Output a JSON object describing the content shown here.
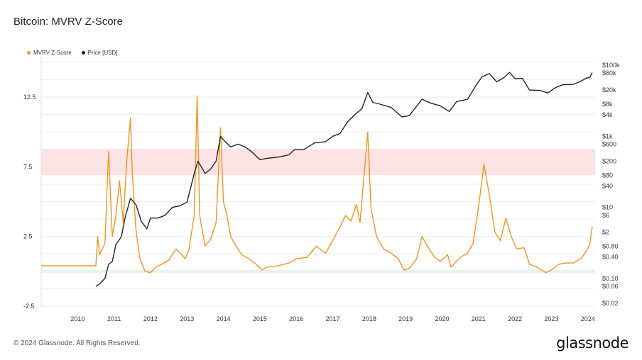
{
  "header": {
    "title": "Bitcoin: MVRV Z-Score"
  },
  "footer": {
    "copyright": "© 2024 Glassnode. All Rights Reserved.",
    "brand": "glassnode"
  },
  "colors": {
    "mvrv": "#f7931a",
    "price": "#222222",
    "red_band": "#fde3e3",
    "green_band": "#e3f5e8",
    "grid": "#eeeeee"
  },
  "chart_data": {
    "type": "line",
    "title": "Bitcoin: MVRV Z-Score",
    "legend": [
      {
        "name": "MVRV Z-Score",
        "color": "#f7931a"
      },
      {
        "name": "Price [USD]",
        "color": "#222222"
      }
    ],
    "legend_position": "top-left",
    "x_ticks": [
      "2010",
      "2011",
      "2012",
      "2013",
      "2014",
      "2015",
      "2016",
      "2017",
      "2018",
      "2019",
      "2020",
      "2021",
      "2022",
      "2023",
      "2024"
    ],
    "xlim": [
      2009.0,
      2024.2
    ],
    "left_axis": {
      "ticks": [
        "12.5",
        "7.5",
        "2.5",
        "-2.5"
      ],
      "tick_values": [
        12.5,
        7.5,
        2.5,
        -2.5
      ],
      "ylim": [
        -2.5,
        15.2
      ]
    },
    "right_axis": {
      "scale": "log",
      "ticks": [
        "$100k",
        "$60k",
        "$20k",
        "$8k",
        "$4k",
        "$1k",
        "$600",
        "$200",
        "$80",
        "$40",
        "$10",
        "$6",
        "$2",
        "$0.80",
        "$0.40",
        "$0.10",
        "$0.06",
        "$0.02"
      ],
      "tick_values": [
        100000,
        60000,
        20000,
        8000,
        4000,
        1000,
        600,
        200,
        80,
        40,
        10,
        6,
        2,
        0.8,
        0.4,
        0.1,
        0.06,
        0.02
      ]
    },
    "bands": [
      {
        "from": 6.9,
        "to": 8.8,
        "color": "#fde3e3"
      },
      {
        "from": -0.1,
        "to": 0.1,
        "color": "#e3f5e8"
      }
    ],
    "series": [
      {
        "name": "MVRV Z-Score",
        "axis": "left",
        "color": "#f7931a",
        "points": [
          [
            2009.0,
            0.4
          ],
          [
            2010.5,
            0.4
          ],
          [
            2010.55,
            2.5
          ],
          [
            2010.6,
            1.2
          ],
          [
            2010.75,
            2.0
          ],
          [
            2010.85,
            8.6
          ],
          [
            2010.95,
            2.5
          ],
          [
            2011.05,
            4.0
          ],
          [
            2011.15,
            6.5
          ],
          [
            2011.25,
            3.5
          ],
          [
            2011.35,
            8.0
          ],
          [
            2011.45,
            11.0
          ],
          [
            2011.5,
            7.0
          ],
          [
            2011.6,
            3.0
          ],
          [
            2011.7,
            1.0
          ],
          [
            2011.85,
            0.0
          ],
          [
            2012.0,
            -0.1
          ],
          [
            2012.15,
            0.3
          ],
          [
            2012.3,
            0.5
          ],
          [
            2012.5,
            0.8
          ],
          [
            2012.7,
            1.6
          ],
          [
            2012.85,
            1.2
          ],
          [
            2012.95,
            0.9
          ],
          [
            2013.05,
            1.5
          ],
          [
            2013.2,
            4.0
          ],
          [
            2013.28,
            12.6
          ],
          [
            2013.35,
            4.0
          ],
          [
            2013.5,
            1.8
          ],
          [
            2013.65,
            2.3
          ],
          [
            2013.8,
            3.5
          ],
          [
            2013.92,
            10.3
          ],
          [
            2014.0,
            5.0
          ],
          [
            2014.1,
            4.0
          ],
          [
            2014.2,
            2.5
          ],
          [
            2014.35,
            1.8
          ],
          [
            2014.5,
            1.2
          ],
          [
            2014.7,
            0.9
          ],
          [
            2014.9,
            0.5
          ],
          [
            2015.05,
            0.1
          ],
          [
            2015.2,
            0.3
          ],
          [
            2015.5,
            0.4
          ],
          [
            2015.8,
            0.6
          ],
          [
            2016.0,
            0.9
          ],
          [
            2016.3,
            1.0
          ],
          [
            2016.55,
            1.8
          ],
          [
            2016.8,
            1.3
          ],
          [
            2017.0,
            2.2
          ],
          [
            2017.2,
            3.2
          ],
          [
            2017.35,
            4.0
          ],
          [
            2017.5,
            3.6
          ],
          [
            2017.65,
            4.8
          ],
          [
            2017.75,
            3.5
          ],
          [
            2017.88,
            7.5
          ],
          [
            2017.96,
            10.0
          ],
          [
            2018.05,
            4.5
          ],
          [
            2018.2,
            2.5
          ],
          [
            2018.4,
            1.6
          ],
          [
            2018.6,
            1.3
          ],
          [
            2018.8,
            0.9
          ],
          [
            2018.95,
            0.1
          ],
          [
            2019.1,
            0.2
          ],
          [
            2019.3,
            0.9
          ],
          [
            2019.45,
            2.5
          ],
          [
            2019.6,
            1.8
          ],
          [
            2019.8,
            1.0
          ],
          [
            2019.95,
            0.7
          ],
          [
            2020.15,
            1.2
          ],
          [
            2020.25,
            0.3
          ],
          [
            2020.5,
            1.0
          ],
          [
            2020.7,
            1.3
          ],
          [
            2020.85,
            2.0
          ],
          [
            2021.0,
            4.6
          ],
          [
            2021.15,
            7.7
          ],
          [
            2021.3,
            5.4
          ],
          [
            2021.45,
            2.8
          ],
          [
            2021.6,
            2.2
          ],
          [
            2021.75,
            3.8
          ],
          [
            2021.9,
            2.5
          ],
          [
            2022.05,
            1.6
          ],
          [
            2022.25,
            1.7
          ],
          [
            2022.4,
            0.5
          ],
          [
            2022.6,
            0.3
          ],
          [
            2022.85,
            -0.1
          ],
          [
            2023.0,
            0.1
          ],
          [
            2023.2,
            0.5
          ],
          [
            2023.4,
            0.6
          ],
          [
            2023.6,
            0.6
          ],
          [
            2023.8,
            0.9
          ],
          [
            2023.95,
            1.4
          ],
          [
            2024.05,
            1.9
          ],
          [
            2024.12,
            3.2
          ]
        ]
      },
      {
        "name": "Price [USD]",
        "axis": "right",
        "color": "#222222",
        "points": [
          [
            2010.5,
            0.06
          ],
          [
            2010.6,
            0.07
          ],
          [
            2010.75,
            0.1
          ],
          [
            2010.85,
            0.25
          ],
          [
            2010.95,
            0.3
          ],
          [
            2011.05,
            0.9
          ],
          [
            2011.2,
            1.5
          ],
          [
            2011.3,
            5
          ],
          [
            2011.45,
            18
          ],
          [
            2011.6,
            12
          ],
          [
            2011.75,
            4
          ],
          [
            2011.9,
            2.5
          ],
          [
            2012.0,
            5
          ],
          [
            2012.2,
            5
          ],
          [
            2012.4,
            6
          ],
          [
            2012.6,
            10
          ],
          [
            2012.8,
            11
          ],
          [
            2013.0,
            14
          ],
          [
            2013.2,
            90
          ],
          [
            2013.3,
            200
          ],
          [
            2013.5,
            90
          ],
          [
            2013.65,
            120
          ],
          [
            2013.8,
            200
          ],
          [
            2013.92,
            1000
          ],
          [
            2014.0,
            800
          ],
          [
            2014.2,
            500
          ],
          [
            2014.4,
            600
          ],
          [
            2014.6,
            500
          ],
          [
            2014.8,
            350
          ],
          [
            2015.0,
            220
          ],
          [
            2015.2,
            240
          ],
          [
            2015.5,
            260
          ],
          [
            2015.8,
            300
          ],
          [
            2015.95,
            420
          ],
          [
            2016.2,
            420
          ],
          [
            2016.5,
            650
          ],
          [
            2016.8,
            700
          ],
          [
            2017.0,
            1000
          ],
          [
            2017.2,
            1200
          ],
          [
            2017.4,
            2500
          ],
          [
            2017.6,
            4000
          ],
          [
            2017.8,
            6000
          ],
          [
            2017.96,
            17000
          ],
          [
            2018.1,
            9000
          ],
          [
            2018.3,
            8000
          ],
          [
            2018.6,
            6500
          ],
          [
            2018.9,
            3500
          ],
          [
            2019.1,
            3800
          ],
          [
            2019.45,
            11000
          ],
          [
            2019.7,
            8500
          ],
          [
            2019.95,
            7200
          ],
          [
            2020.2,
            5000
          ],
          [
            2020.4,
            9500
          ],
          [
            2020.7,
            11000
          ],
          [
            2020.95,
            29000
          ],
          [
            2021.1,
            47000
          ],
          [
            2021.3,
            58000
          ],
          [
            2021.5,
            34000
          ],
          [
            2021.7,
            45000
          ],
          [
            2021.85,
            63000
          ],
          [
            2022.0,
            42000
          ],
          [
            2022.2,
            43000
          ],
          [
            2022.4,
            20000
          ],
          [
            2022.7,
            19500
          ],
          [
            2022.9,
            16500
          ],
          [
            2023.1,
            23000
          ],
          [
            2023.3,
            28000
          ],
          [
            2023.6,
            29000
          ],
          [
            2023.8,
            35000
          ],
          [
            2023.95,
            43000
          ],
          [
            2024.05,
            45000
          ],
          [
            2024.12,
            62000
          ]
        ]
      }
    ]
  }
}
